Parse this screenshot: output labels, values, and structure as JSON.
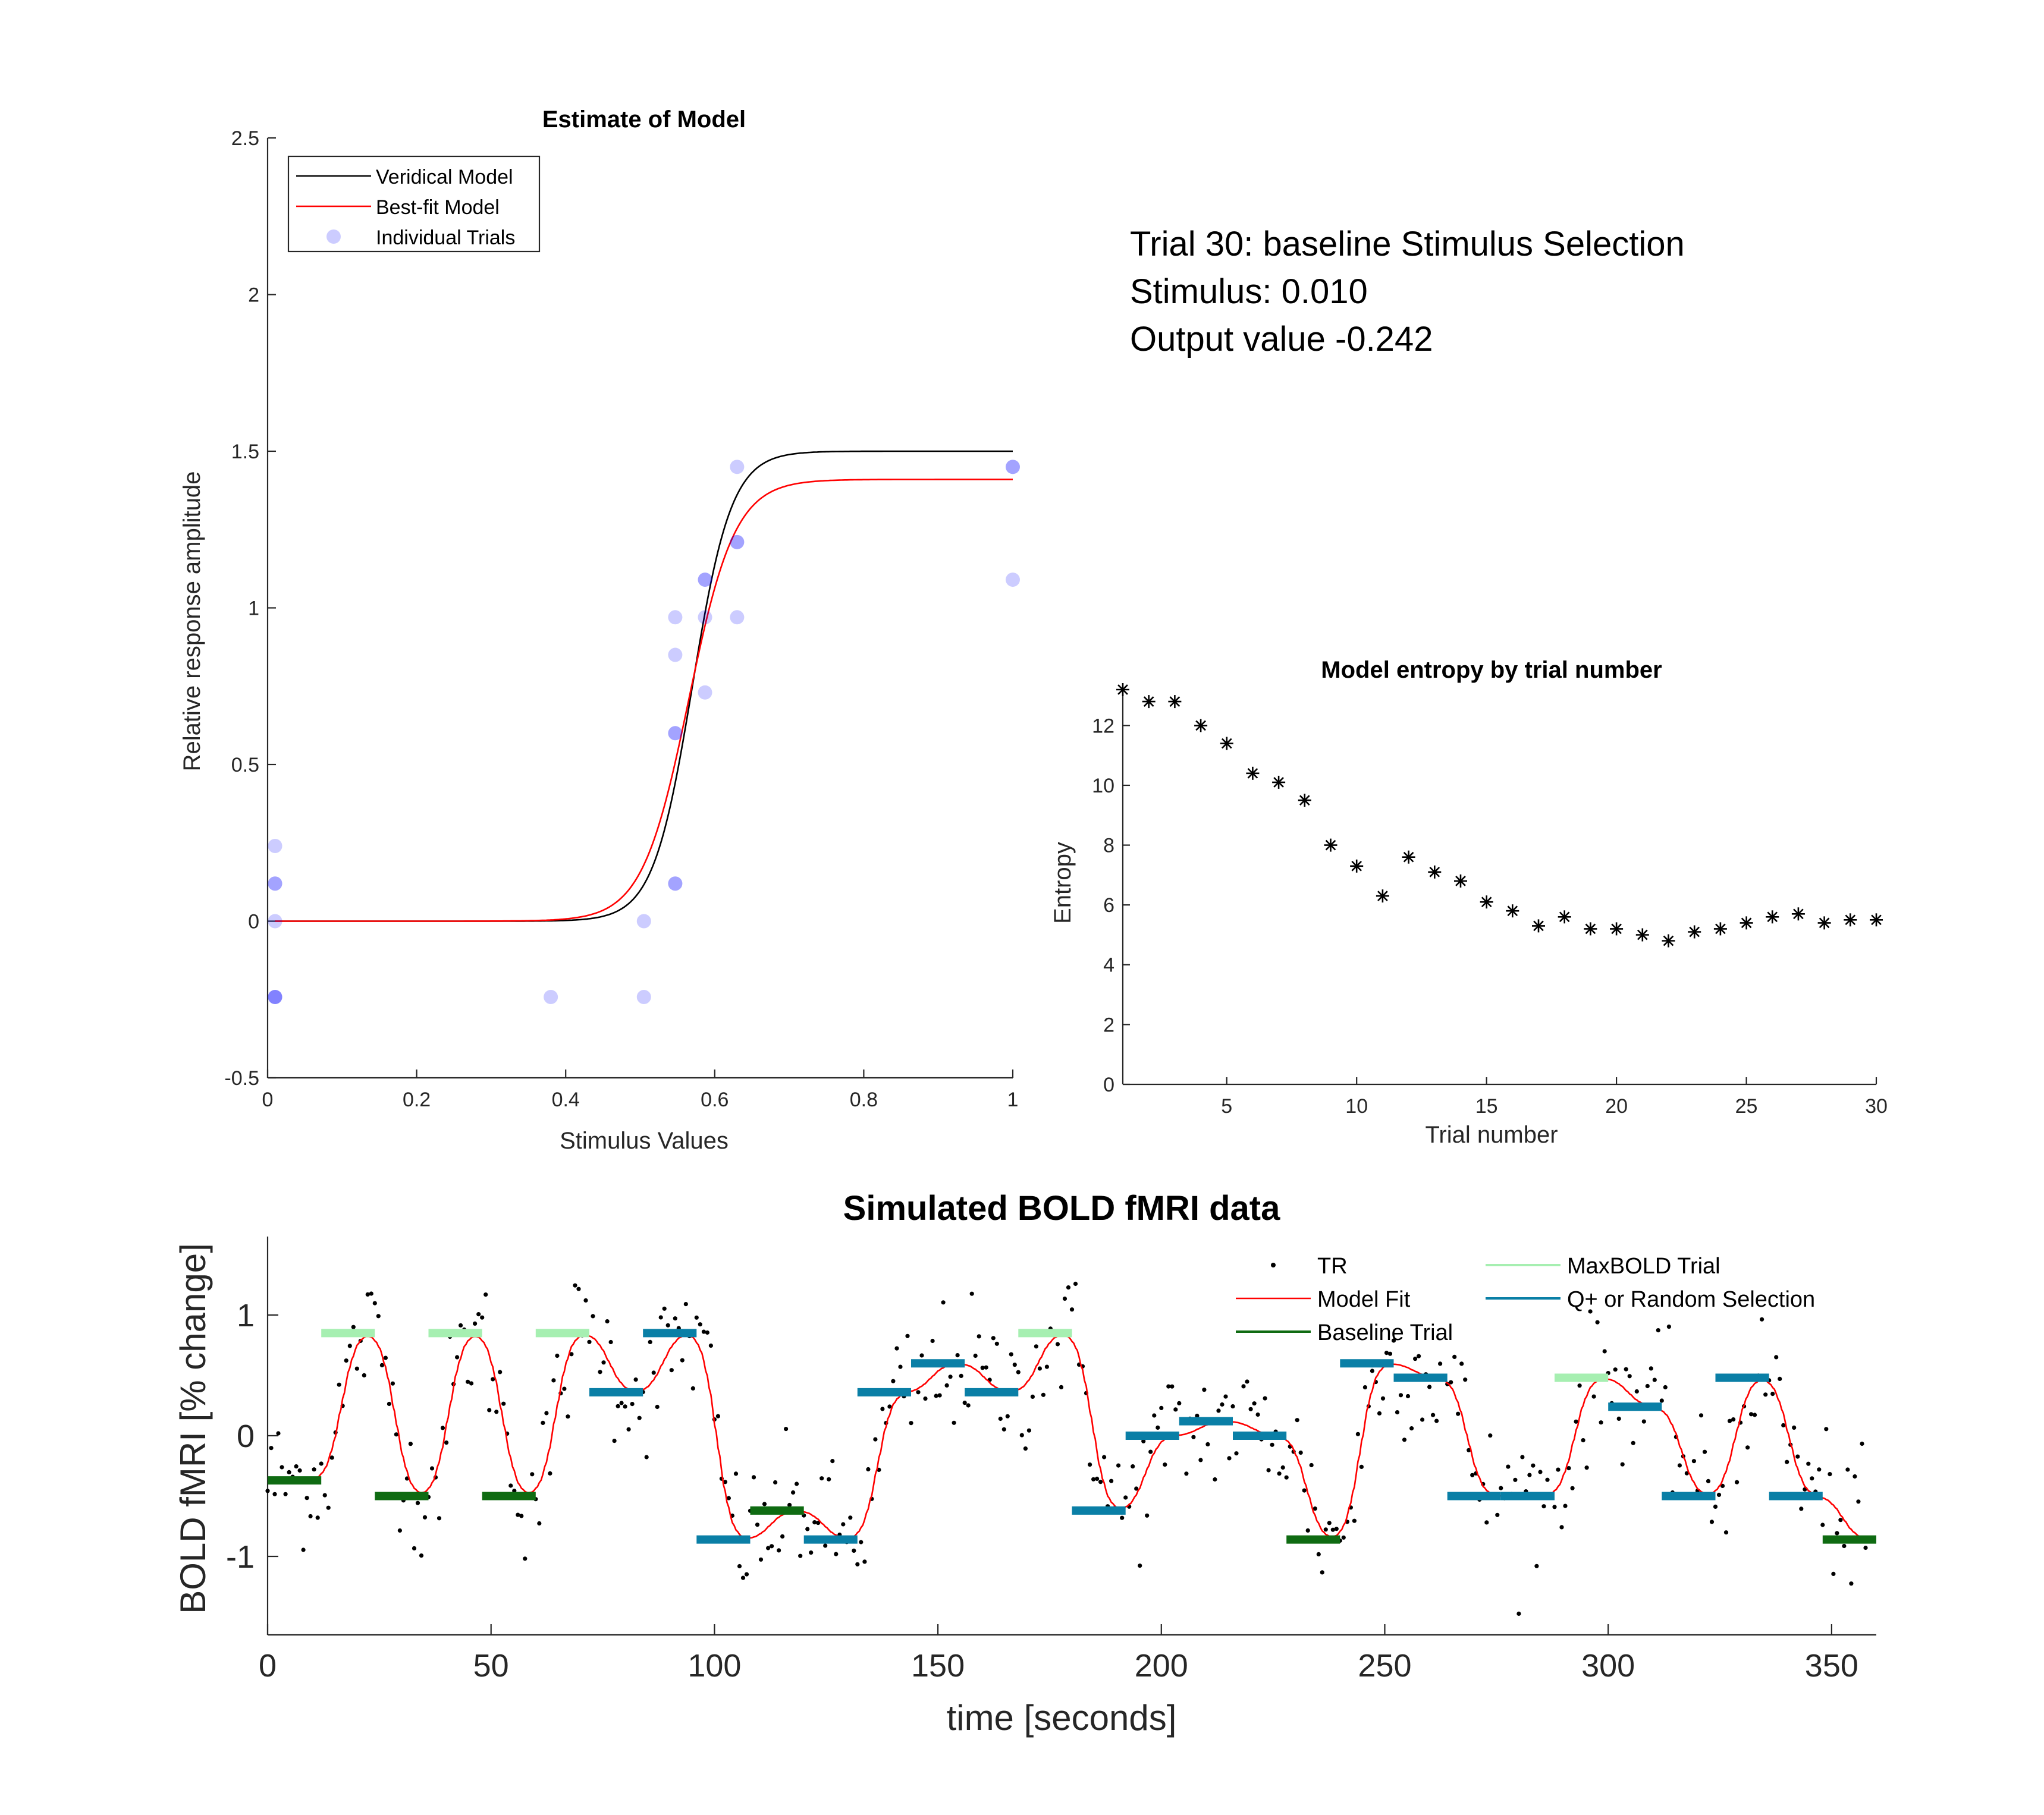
{
  "info": {
    "line1": "Trial 30: baseline Stimulus Selection",
    "line2": "Stimulus: 0.010",
    "line3": "Output value -0.242"
  },
  "chart_data": [
    {
      "id": "model",
      "type": "scatter",
      "title": "Estimate of Model",
      "xlabel": "Stimulus Values",
      "ylabel": "Relative response amplitude",
      "xlim": [
        0,
        1
      ],
      "ylim": [
        -0.5,
        2.5
      ],
      "xticks": [
        0,
        0.2,
        0.4,
        0.6,
        0.8,
        1
      ],
      "xtick_labels": [
        "0",
        "0.2",
        "0.4",
        "0.6",
        "0.8",
        "1"
      ],
      "yticks": [
        -0.5,
        0,
        0.5,
        1,
        1.5,
        2,
        2.5
      ],
      "ytick_labels": [
        "-0.5",
        "0",
        "0.5",
        "1",
        "1.5",
        "2",
        "2.5"
      ],
      "legend": {
        "position": "top-left",
        "entries": [
          "Veridical Model",
          "Best-fit Model",
          "Individual Trials"
        ]
      },
      "colors": {
        "veridical": "#000000",
        "bestfit": "#ff0000",
        "trials": "#0000ff"
      },
      "series": [
        {
          "name": "Veridical Model",
          "kind": "logistic",
          "amplitude": 1.5,
          "midpoint": 0.57,
          "slope": 38
        },
        {
          "name": "Best-fit Model",
          "kind": "logistic",
          "amplitude": 1.41,
          "midpoint": 0.565,
          "slope": 32
        },
        {
          "name": "Individual Trials",
          "points": [
            {
              "x": 0.01,
              "y": 0.24
            },
            {
              "x": 0.01,
              "y": 0.12
            },
            {
              "x": 0.01,
              "y": 0.12
            },
            {
              "x": 0.01,
              "y": 0.0
            },
            {
              "x": 0.01,
              "y": -0.242
            },
            {
              "x": 0.01,
              "y": -0.242
            },
            {
              "x": 0.01,
              "y": -0.242
            },
            {
              "x": 0.38,
              "y": -0.242
            },
            {
              "x": 0.505,
              "y": 0.0
            },
            {
              "x": 0.505,
              "y": -0.242
            },
            {
              "x": 0.547,
              "y": 0.97
            },
            {
              "x": 0.547,
              "y": 0.85
            },
            {
              "x": 0.547,
              "y": 0.6
            },
            {
              "x": 0.547,
              "y": 0.6
            },
            {
              "x": 0.547,
              "y": 0.12
            },
            {
              "x": 0.547,
              "y": 0.12
            },
            {
              "x": 0.587,
              "y": 1.09
            },
            {
              "x": 0.587,
              "y": 1.09
            },
            {
              "x": 0.587,
              "y": 0.97
            },
            {
              "x": 0.587,
              "y": 0.73
            },
            {
              "x": 0.63,
              "y": 1.45
            },
            {
              "x": 0.63,
              "y": 1.21
            },
            {
              "x": 0.63,
              "y": 1.21
            },
            {
              "x": 0.63,
              "y": 0.97
            },
            {
              "x": 1.0,
              "y": 1.45
            },
            {
              "x": 1.0,
              "y": 1.45
            },
            {
              "x": 1.0,
              "y": 1.09
            }
          ]
        }
      ]
    },
    {
      "id": "entropy",
      "type": "scatter",
      "title": "Model entropy by trial number",
      "xlabel": "Trial number",
      "ylabel": "Entropy",
      "xlim": [
        1,
        30
      ],
      "ylim": [
        0,
        13.2
      ],
      "xticks": [
        5,
        10,
        15,
        20,
        25,
        30
      ],
      "xtick_labels": [
        "5",
        "10",
        "15",
        "20",
        "25",
        "30"
      ],
      "yticks": [
        0,
        2,
        4,
        6,
        8,
        10,
        12
      ],
      "ytick_labels": [
        "0",
        "2",
        "4",
        "6",
        "8",
        "10",
        "12"
      ],
      "marker": "asterisk",
      "x": [
        1,
        2,
        3,
        4,
        5,
        6,
        7,
        8,
        9,
        10,
        11,
        12,
        13,
        14,
        15,
        16,
        17,
        18,
        19,
        20,
        21,
        22,
        23,
        24,
        25,
        26,
        27,
        28,
        29,
        30
      ],
      "y": [
        13.2,
        12.8,
        12.8,
        12.0,
        11.4,
        10.4,
        10.1,
        9.5,
        8.0,
        7.3,
        6.3,
        7.6,
        7.1,
        6.8,
        6.1,
        5.8,
        5.3,
        5.6,
        5.2,
        5.2,
        5.0,
        4.8,
        5.1,
        5.2,
        5.4,
        5.6,
        5.7,
        5.4,
        5.5,
        5.5
      ]
    },
    {
      "id": "bold",
      "type": "line",
      "title": "Simulated BOLD fMRI data",
      "xlabel": "time [seconds]",
      "ylabel": "BOLD fMRI [% change]",
      "xlim": [
        0,
        360
      ],
      "ylim": [
        -1.65,
        1.65
      ],
      "xticks": [
        0,
        50,
        100,
        150,
        200,
        250,
        300,
        350
      ],
      "xtick_labels": [
        "0",
        "50",
        "100",
        "150",
        "200",
        "250",
        "300",
        "350"
      ],
      "yticks": [
        -1,
        0,
        1
      ],
      "ytick_labels": [
        "-1",
        "0",
        "1"
      ],
      "legend": {
        "position": "top-right",
        "entries": [
          "TR",
          "Model Fit",
          "Baseline Trial",
          "MaxBOLD Trial",
          "Q+ or Random Selection"
        ]
      },
      "colors": {
        "tr": "#000000",
        "fit": "#ff0000",
        "baseline": "#0f6b12",
        "maxbold": "#a6efb1",
        "qplus": "#0a7fa6"
      },
      "trial_duration": 12,
      "trials": [
        {
          "start": 0,
          "level": -0.37,
          "type": "baseline"
        },
        {
          "start": 12,
          "level": 0.85,
          "type": "maxbold"
        },
        {
          "start": 24,
          "level": -0.5,
          "type": "baseline"
        },
        {
          "start": 36,
          "level": 0.85,
          "type": "maxbold"
        },
        {
          "start": 48,
          "level": -0.5,
          "type": "baseline"
        },
        {
          "start": 60,
          "level": 0.85,
          "type": "maxbold"
        },
        {
          "start": 72,
          "level": 0.36,
          "type": "qplus"
        },
        {
          "start": 84,
          "level": 0.85,
          "type": "qplus"
        },
        {
          "start": 96,
          "level": -0.86,
          "type": "qplus"
        },
        {
          "start": 108,
          "level": -0.62,
          "type": "baseline"
        },
        {
          "start": 120,
          "level": -0.86,
          "type": "qplus"
        },
        {
          "start": 132,
          "level": 0.36,
          "type": "qplus"
        },
        {
          "start": 144,
          "level": 0.6,
          "type": "qplus"
        },
        {
          "start": 156,
          "level": 0.36,
          "type": "qplus"
        },
        {
          "start": 168,
          "level": 0.85,
          "type": "maxbold"
        },
        {
          "start": 180,
          "level": -0.62,
          "type": "qplus"
        },
        {
          "start": 192,
          "level": 0.0,
          "type": "qplus"
        },
        {
          "start": 204,
          "level": 0.12,
          "type": "qplus"
        },
        {
          "start": 216,
          "level": 0.0,
          "type": "qplus"
        },
        {
          "start": 228,
          "level": -0.86,
          "type": "baseline"
        },
        {
          "start": 240,
          "level": 0.6,
          "type": "qplus"
        },
        {
          "start": 252,
          "level": 0.48,
          "type": "qplus"
        },
        {
          "start": 264,
          "level": -0.5,
          "type": "qplus"
        },
        {
          "start": 276,
          "level": -0.5,
          "type": "qplus"
        },
        {
          "start": 288,
          "level": 0.48,
          "type": "maxbold"
        },
        {
          "start": 300,
          "level": 0.24,
          "type": "qplus"
        },
        {
          "start": 312,
          "level": -0.5,
          "type": "qplus"
        },
        {
          "start": 324,
          "level": 0.48,
          "type": "qplus"
        },
        {
          "start": 336,
          "level": -0.5,
          "type": "qplus"
        },
        {
          "start": 348,
          "level": -0.86,
          "type": "baseline"
        }
      ],
      "tr_seconds": 0.8,
      "tr_noise_sd": 0.28
    }
  ]
}
